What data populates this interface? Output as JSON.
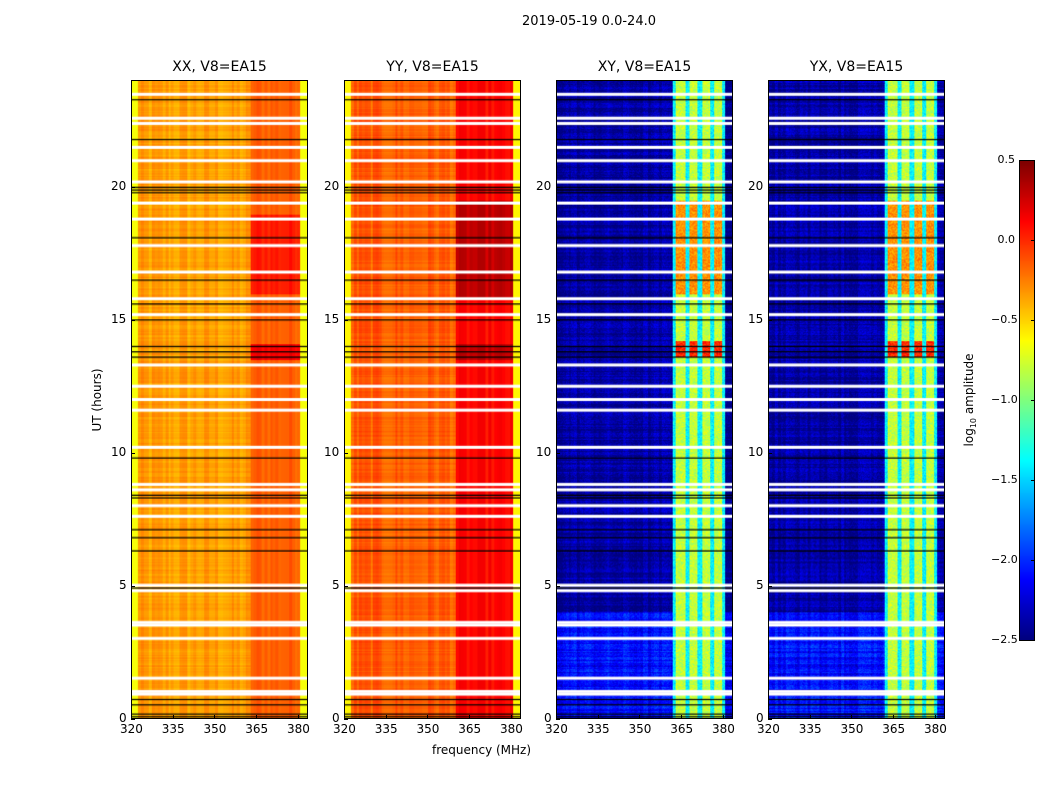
{
  "suptitle": "2019-05-19 0.0-24.0",
  "chart_data": [
    {
      "type": "heatmap",
      "title": "XX, V8=EA15",
      "xlabel": "",
      "ylabel": "UT (hours)",
      "xlim": [
        320,
        383.6
      ],
      "ylim": [
        0,
        24
      ],
      "xticks": [
        320,
        335,
        350,
        365,
        380
      ],
      "yticks": [
        0,
        5,
        10,
        15,
        20
      ],
      "model": {
        "base": -0.35,
        "edge_low": -0.65,
        "band_level": -0.15,
        "band_range": [
          363,
          381
        ],
        "hot_times": [
          [
            13.5,
            14.1,
            0.15
          ],
          [
            16.0,
            19.0,
            0.05
          ]
        ],
        "noise": 0.08
      }
    },
    {
      "type": "heatmap",
      "title": "YY, V8=EA15",
      "xlabel": "frequency (MHz)",
      "ylabel": "",
      "xlim": [
        320,
        383.6
      ],
      "ylim": [
        0,
        24
      ],
      "xticks": [
        320,
        335,
        350,
        365,
        380
      ],
      "yticks": [
        0,
        5,
        10,
        15,
        20
      ],
      "model": {
        "base": -0.15,
        "edge_low": -0.6,
        "band_level": 0.1,
        "band_range": [
          360,
          381
        ],
        "hot_times": [
          [
            13.5,
            14.1,
            0.3
          ],
          [
            15.8,
            19.5,
            0.3
          ]
        ],
        "noise": 0.08
      }
    },
    {
      "type": "heatmap",
      "title": "XY, V8=EA15",
      "xlabel": "",
      "ylabel": "",
      "xlim": [
        320,
        383.6
      ],
      "ylim": [
        0,
        24
      ],
      "xticks": [
        320,
        335,
        350,
        365,
        380
      ],
      "yticks": [
        0,
        5,
        10,
        15,
        20
      ],
      "model": {
        "base": -2.3,
        "low_time_level": -2.0,
        "band_level": -0.8,
        "gap_level": -1.4,
        "bands": [
          [
            363,
            366.5
          ],
          [
            368,
            371
          ],
          [
            372.5,
            375.5
          ],
          [
            377,
            380
          ]
        ],
        "hot_times": [
          [
            13.6,
            14.2,
            0.0
          ],
          [
            16.0,
            19.5,
            -0.3
          ]
        ],
        "noise": 0.2
      }
    },
    {
      "type": "heatmap",
      "title": "YX, V8=EA15",
      "xlabel": "",
      "ylabel": "",
      "xlim": [
        320,
        383.6
      ],
      "ylim": [
        0,
        24
      ],
      "xticks": [
        320,
        335,
        350,
        365,
        380
      ],
      "yticks": [
        0,
        5,
        10,
        15,
        20
      ],
      "model": {
        "base": -2.3,
        "low_time_level": -2.0,
        "band_level": -0.8,
        "gap_level": -1.4,
        "bands": [
          [
            363,
            366.5
          ],
          [
            368,
            371
          ],
          [
            372.5,
            375.5
          ],
          [
            377,
            380
          ]
        ],
        "hot_times": [
          [
            13.6,
            14.2,
            0.0
          ],
          [
            16.0,
            19.5,
            -0.3
          ]
        ],
        "noise": 0.2
      }
    }
  ],
  "flagged_times_white": [
    0.9,
    1.0,
    1.5,
    3.0,
    3.5,
    3.6,
    4.8,
    5.0,
    7.6,
    8.0,
    8.6,
    8.8,
    10.2,
    11.6,
    12.0,
    12.5,
    13.3,
    15.2,
    15.8,
    16.8,
    17.8,
    18.8,
    19.4,
    20.2,
    21.0,
    21.5,
    22.4,
    22.6,
    23.5
  ],
  "flagged_times_black": [
    0.05,
    0.15,
    0.5,
    0.7,
    4.9,
    6.3,
    6.8,
    7.1,
    8.3,
    8.4,
    9.8,
    13.6,
    13.8,
    14.0,
    15.0,
    15.6,
    16.5,
    18.1,
    19.8,
    19.9,
    20.0,
    21.8,
    23.3
  ],
  "colorbar": {
    "label": "log10 amplitude",
    "label_main": "log",
    "label_sub": "10",
    "label_rest": " amplitude",
    "min": -2.5,
    "max": 0.5,
    "ticks": [
      "0.5",
      "0.0",
      "−0.5",
      "−1.0",
      "−1.5",
      "−2.0",
      "−2.5"
    ],
    "tick_values": [
      0.5,
      0,
      -0.5,
      -1,
      -1.5,
      -2,
      -2.5
    ],
    "colormap": "jet"
  }
}
